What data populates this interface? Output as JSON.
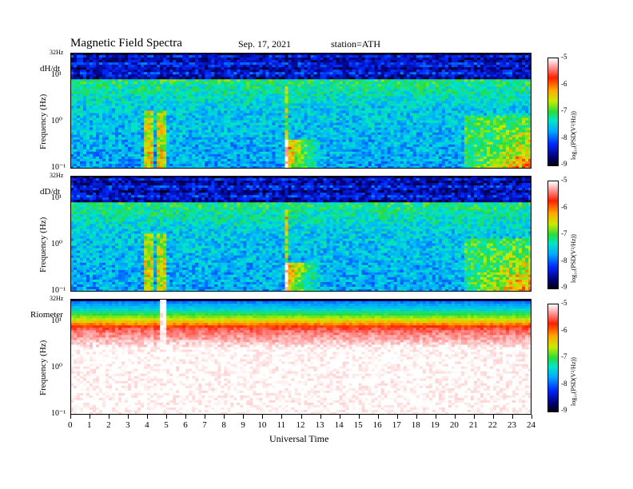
{
  "header": {
    "title": "Magnetic  Field  Spectra",
    "date": "Sep. 17, 2021",
    "station": "station=ATH"
  },
  "chart_data": [
    {
      "type": "heatmap",
      "channel": "dH/dt",
      "ylabel": "Frequency  (Hz)",
      "ytop_label": "32Hz",
      "ytick_labels": [
        "10¹",
        "10⁰",
        "10⁻¹"
      ],
      "yscale": "log",
      "ylim": [
        0.1,
        32
      ],
      "xlim": [
        0,
        24
      ],
      "colorbar": {
        "label": "log₁₀(PSD(V²/Hz))",
        "ticks": [
          "-5",
          "-6",
          "-7",
          "-8",
          "-9"
        ],
        "range": [
          -9,
          -5
        ]
      }
    },
    {
      "type": "heatmap",
      "channel": "dD/dt",
      "ylabel": "Frequency  (Hz)",
      "ytop_label": "32Hz",
      "ytick_labels": [
        "10¹",
        "10⁰",
        "10⁻¹"
      ],
      "yscale": "log",
      "ylim": [
        0.1,
        32
      ],
      "xlim": [
        0,
        24
      ],
      "colorbar": {
        "label": "log₁₀(PSD(V²/Hz))",
        "ticks": [
          "-5",
          "-6",
          "-7",
          "-8",
          "-9"
        ],
        "range": [
          -9,
          -5
        ]
      }
    },
    {
      "type": "heatmap",
      "channel": "Riometer",
      "ylabel": "Frequency  (Hz)",
      "ytop_label": "32Hz",
      "ytick_labels": [
        "10¹",
        "10⁰",
        "10⁻¹"
      ],
      "yscale": "log",
      "ylim": [
        0.1,
        32
      ],
      "xlim": [
        0,
        24
      ],
      "colorbar": {
        "label": "log₁₀(PSD(V²/Hz))",
        "ticks": [
          "-5",
          "-6",
          "-7",
          "-8",
          "-9"
        ],
        "range": [
          -9,
          -5
        ]
      }
    }
  ],
  "xaxis": {
    "label": "Universal Time",
    "ticks": [
      "0",
      "1",
      "2",
      "3",
      "4",
      "5",
      "6",
      "7",
      "8",
      "9",
      "10",
      "11",
      "12",
      "13",
      "14",
      "15",
      "16",
      "17",
      "18",
      "19",
      "20",
      "21",
      "22",
      "23",
      "24"
    ]
  }
}
